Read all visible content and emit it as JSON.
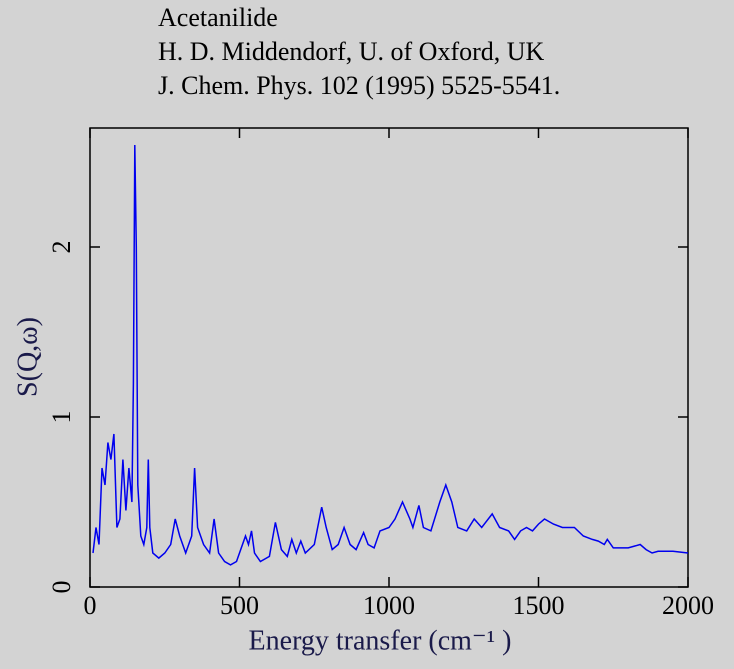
{
  "chart_data": {
    "type": "line",
    "title_lines": [
      "Acetanilide",
      "H. D. Middendorf, U. of Oxford, UK",
      "J. Chem. Phys. 102 (1995) 5525-5541."
    ],
    "xlabel": "Energy transfer (cm⁻¹ )",
    "ylabel": "S(Q,ω)",
    "xlim": [
      0,
      2000
    ],
    "ylim": [
      0,
      2.7
    ],
    "xticks": [
      0,
      500,
      1000,
      1500,
      2000
    ],
    "yticks": [
      0,
      1,
      2
    ],
    "series": [
      {
        "color": "#0000ee",
        "x": [
          10,
          20,
          30,
          40,
          50,
          60,
          70,
          80,
          90,
          100,
          110,
          120,
          130,
          140,
          145,
          150,
          155,
          160,
          170,
          180,
          190,
          195,
          200,
          210,
          230,
          250,
          270,
          285,
          300,
          320,
          340,
          350,
          360,
          380,
          400,
          415,
          430,
          450,
          470,
          490,
          510,
          520,
          530,
          540,
          550,
          570,
          600,
          620,
          640,
          660,
          675,
          690,
          705,
          720,
          750,
          775,
          790,
          810,
          830,
          850,
          870,
          890,
          915,
          930,
          950,
          970,
          1000,
          1020,
          1045,
          1070,
          1080,
          1100,
          1115,
          1140,
          1170,
          1190,
          1210,
          1230,
          1260,
          1285,
          1310,
          1345,
          1370,
          1400,
          1420,
          1440,
          1460,
          1480,
          1500,
          1520,
          1550,
          1580,
          1620,
          1650,
          1680,
          1700,
          1720,
          1730,
          1750,
          1800,
          1840,
          1860,
          1880,
          1900,
          1950,
          2000
        ],
        "values": [
          0.2,
          0.35,
          0.25,
          0.7,
          0.6,
          0.85,
          0.75,
          0.9,
          0.35,
          0.4,
          0.75,
          0.45,
          0.7,
          0.5,
          1.2,
          2.6,
          2.0,
          0.6,
          0.3,
          0.25,
          0.35,
          0.75,
          0.35,
          0.2,
          0.17,
          0.2,
          0.25,
          0.4,
          0.3,
          0.2,
          0.3,
          0.7,
          0.35,
          0.25,
          0.2,
          0.4,
          0.2,
          0.15,
          0.13,
          0.15,
          0.25,
          0.3,
          0.25,
          0.33,
          0.2,
          0.15,
          0.18,
          0.38,
          0.22,
          0.18,
          0.28,
          0.2,
          0.27,
          0.2,
          0.25,
          0.47,
          0.35,
          0.22,
          0.25,
          0.35,
          0.25,
          0.22,
          0.32,
          0.25,
          0.23,
          0.33,
          0.35,
          0.4,
          0.5,
          0.4,
          0.35,
          0.48,
          0.35,
          0.33,
          0.5,
          0.6,
          0.5,
          0.35,
          0.33,
          0.4,
          0.35,
          0.43,
          0.35,
          0.33,
          0.28,
          0.33,
          0.35,
          0.33,
          0.37,
          0.4,
          0.37,
          0.35,
          0.35,
          0.3,
          0.28,
          0.27,
          0.25,
          0.28,
          0.23,
          0.23,
          0.25,
          0.22,
          0.2,
          0.21,
          0.21,
          0.2
        ]
      }
    ]
  }
}
